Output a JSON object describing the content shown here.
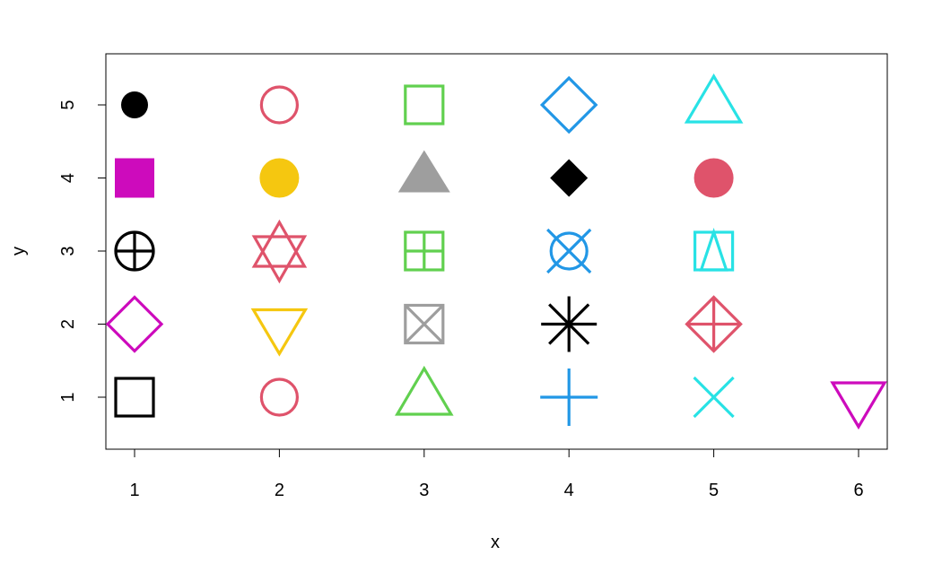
{
  "chart_data": {
    "type": "scatter",
    "title": "",
    "xlabel": "x",
    "ylabel": "y",
    "xlim": [
      0.8,
      6.2
    ],
    "ylim": [
      0.3,
      5.7
    ],
    "xticks": [
      "1",
      "2",
      "3",
      "4",
      "5",
      "6"
    ],
    "yticks": [
      "1",
      "2",
      "3",
      "4",
      "5"
    ],
    "grid": false,
    "points": [
      {
        "x": 1,
        "y": 5,
        "shape": "filled-circle",
        "color": "#000000"
      },
      {
        "x": 2,
        "y": 5,
        "shape": "open-circle",
        "color": "#DF536B"
      },
      {
        "x": 3,
        "y": 5,
        "shape": "open-square",
        "color": "#61D04F"
      },
      {
        "x": 4,
        "y": 5,
        "shape": "open-diamond",
        "color": "#2297E6"
      },
      {
        "x": 5,
        "y": 5,
        "shape": "open-triangle-up",
        "color": "#28E2E5"
      },
      {
        "x": 1,
        "y": 4,
        "shape": "filled-square",
        "color": "#CD0BBC"
      },
      {
        "x": 2,
        "y": 4,
        "shape": "filled-circle",
        "color": "#F5C710"
      },
      {
        "x": 3,
        "y": 4,
        "shape": "filled-triangle-up",
        "color": "#9E9E9E"
      },
      {
        "x": 4,
        "y": 4,
        "shape": "filled-diamond",
        "color": "#000000"
      },
      {
        "x": 5,
        "y": 4,
        "shape": "filled-circle",
        "color": "#DF536B"
      },
      {
        "x": 1,
        "y": 3,
        "shape": "circle-plus",
        "color": "#000000"
      },
      {
        "x": 2,
        "y": 3,
        "shape": "star-of-david",
        "color": "#DF536B"
      },
      {
        "x": 3,
        "y": 3,
        "shape": "square-plus",
        "color": "#61D04F"
      },
      {
        "x": 4,
        "y": 3,
        "shape": "circle-cross",
        "color": "#2297E6"
      },
      {
        "x": 5,
        "y": 3,
        "shape": "square-triangle",
        "color": "#28E2E5"
      },
      {
        "x": 1,
        "y": 2,
        "shape": "open-diamond",
        "color": "#CD0BBC"
      },
      {
        "x": 2,
        "y": 2,
        "shape": "open-triangle-down",
        "color": "#F5C710"
      },
      {
        "x": 3,
        "y": 2,
        "shape": "square-cross",
        "color": "#9E9E9E"
      },
      {
        "x": 4,
        "y": 2,
        "shape": "asterisk",
        "color": "#000000"
      },
      {
        "x": 5,
        "y": 2,
        "shape": "diamond-plus",
        "color": "#DF536B"
      },
      {
        "x": 1,
        "y": 1,
        "shape": "open-square",
        "color": "#000000"
      },
      {
        "x": 2,
        "y": 1,
        "shape": "open-circle",
        "color": "#DF536B"
      },
      {
        "x": 3,
        "y": 1,
        "shape": "open-triangle-up",
        "color": "#61D04F"
      },
      {
        "x": 4,
        "y": 1,
        "shape": "plus",
        "color": "#2297E6"
      },
      {
        "x": 5,
        "y": 1,
        "shape": "cross",
        "color": "#28E2E5"
      },
      {
        "x": 6,
        "y": 1,
        "shape": "open-triangle-down",
        "color": "#CD0BBC"
      }
    ]
  }
}
